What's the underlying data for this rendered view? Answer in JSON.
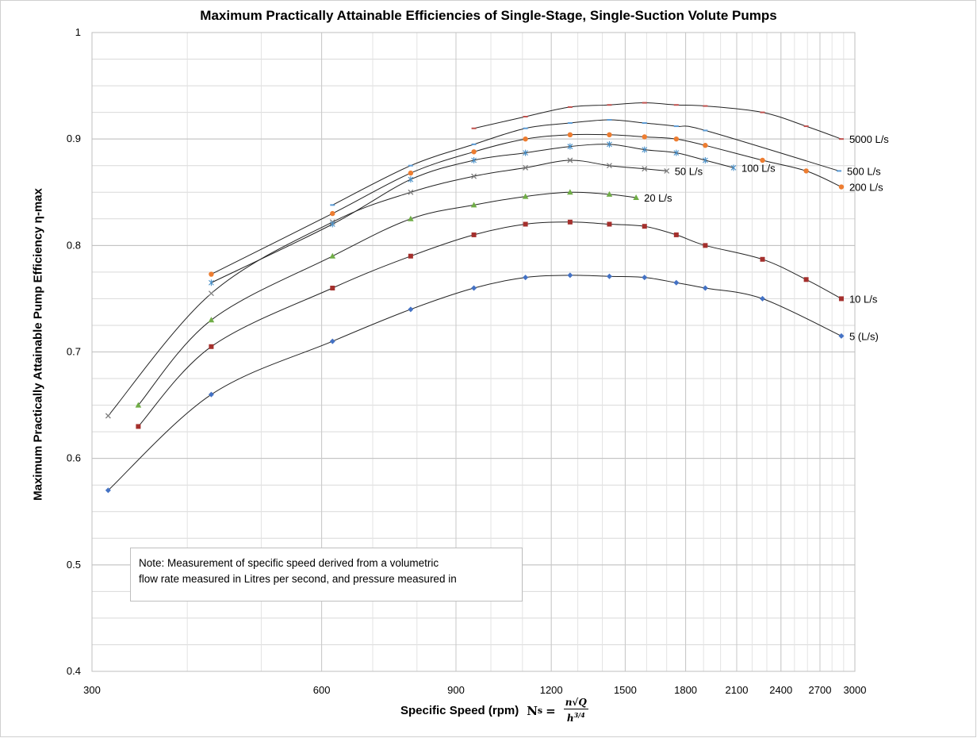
{
  "chart_data": {
    "type": "scatter",
    "title": "Maximum Practically Attainable Efficiencies of Single-Stage, Single-Suction Volute Pumps",
    "xlabel": "Specific Speed (rpm)",
    "xlabel_formula": {
      "lhs": "N",
      "sub": "s",
      "numerator": "n√Q",
      "denominator": "h",
      "exponent": "3/4"
    },
    "ylabel": "Maximum Practically Attainable Pump Efficiency η-max",
    "xscale": "log",
    "xlim": [
      300,
      3000
    ],
    "ylim": [
      0.4,
      1.0
    ],
    "x_ticks": [
      "300",
      "600",
      "900",
      "1200",
      "1500",
      "1800",
      "2100",
      "2400",
      "2700",
      "3000"
    ],
    "y_ticks": [
      "0.4",
      "0.5",
      "0.6",
      "0.7",
      "0.8",
      "0.9",
      "1"
    ],
    "grid": true,
    "note": [
      "Note: Measurement of specific speed derived from a volumetric",
      "flow rate measured in Litres per second, and pressure measured in"
    ],
    "series": [
      {
        "name": "5 (L/s)",
        "color": "#4472c4",
        "marker": "diamond",
        "x": [
          315,
          430,
          620,
          785,
          950,
          1110,
          1270,
          1430,
          1590,
          1750,
          1910,
          2270,
          2880
        ],
        "y": [
          0.57,
          0.66,
          0.71,
          0.74,
          0.76,
          0.77,
          0.772,
          0.771,
          0.77,
          0.765,
          0.76,
          0.75,
          0.715
        ]
      },
      {
        "name": "10 L/s",
        "color": "#a5302d",
        "marker": "square",
        "x": [
          345,
          430,
          620,
          785,
          950,
          1110,
          1270,
          1430,
          1590,
          1750,
          1910,
          2270,
          2590,
          2880
        ],
        "y": [
          0.63,
          0.705,
          0.76,
          0.79,
          0.81,
          0.82,
          0.822,
          0.82,
          0.818,
          0.81,
          0.8,
          0.787,
          0.768,
          0.75
        ]
      },
      {
        "name": "20 L/s",
        "color": "#70ad47",
        "marker": "triangle",
        "x": [
          345,
          430,
          620,
          785,
          950,
          1110,
          1270,
          1430,
          1550
        ],
        "y": [
          0.65,
          0.73,
          0.79,
          0.825,
          0.838,
          0.846,
          0.85,
          0.848,
          0.845
        ]
      },
      {
        "name": "50 L/s",
        "color": "#7f7f7f",
        "marker": "x",
        "x": [
          315,
          430,
          620,
          785,
          950,
          1110,
          1270,
          1430,
          1590,
          1700
        ],
        "y": [
          0.64,
          0.755,
          0.822,
          0.85,
          0.865,
          0.873,
          0.88,
          0.875,
          0.872,
          0.87
        ]
      },
      {
        "name": "100 L/s",
        "color": "#4a90c8",
        "marker": "star",
        "x": [
          430,
          620,
          785,
          950,
          1110,
          1270,
          1430,
          1590,
          1750,
          1910,
          2080
        ],
        "y": [
          0.765,
          0.82,
          0.862,
          0.88,
          0.887,
          0.893,
          0.895,
          0.89,
          0.887,
          0.88,
          0.873
        ]
      },
      {
        "name": "200 L/s",
        "color": "#ed7d31",
        "marker": "circle",
        "x": [
          430,
          620,
          785,
          950,
          1110,
          1270,
          1430,
          1590,
          1750,
          1910,
          2270,
          2590,
          2880
        ],
        "y": [
          0.773,
          0.83,
          0.868,
          0.888,
          0.9,
          0.904,
          0.904,
          0.902,
          0.9,
          0.894,
          0.88,
          0.87,
          0.855
        ]
      },
      {
        "name": "500 L/s",
        "color": "#5b9bd5",
        "marker": "dash",
        "x": [
          620,
          785,
          950,
          1110,
          1270,
          1430,
          1590,
          1750,
          1910,
          2860
        ],
        "y": [
          0.838,
          0.875,
          0.895,
          0.91,
          0.915,
          0.918,
          0.915,
          0.912,
          0.908,
          0.87
        ]
      },
      {
        "name": "5000 L/s",
        "color": "#c0504d",
        "marker": "dash",
        "x": [
          950,
          1110,
          1270,
          1430,
          1590,
          1750,
          1910,
          2270,
          2590,
          2880
        ],
        "y": [
          0.91,
          0.921,
          0.93,
          0.932,
          0.934,
          0.932,
          0.931,
          0.925,
          0.912,
          0.9
        ]
      }
    ]
  }
}
